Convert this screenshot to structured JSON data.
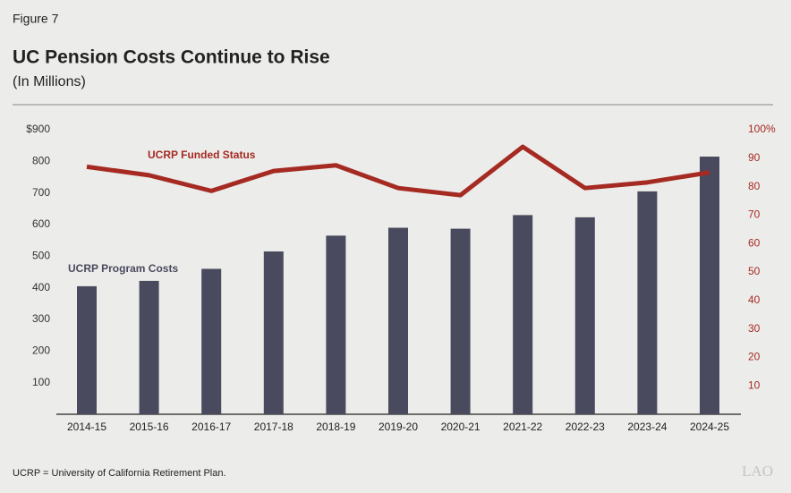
{
  "figure_label": "Figure 7",
  "footnote": "UCRP = University of California Retirement Plan.",
  "logo": "LAO",
  "chart_data": {
    "type": "bar",
    "title": "UC Pension Costs Continue to Rise",
    "subtitle": "(In Millions)",
    "categories": [
      "2014-15",
      "2015-16",
      "2016-17",
      "2017-18",
      "2018-19",
      "2019-20",
      "2020-21",
      "2021-22",
      "2022-23",
      "2023-24",
      "2024-25"
    ],
    "series": [
      {
        "name": "UCRP Program Costs",
        "type": "bar",
        "color": "#4a4a5e",
        "values": [
          405,
          422,
          460,
          515,
          565,
          590,
          587,
          630,
          623,
          705,
          815
        ]
      },
      {
        "name": "UCRP Funded Status",
        "type": "line",
        "axis": "y2",
        "color": "#a52a22",
        "values": [
          87,
          84,
          78.5,
          85.5,
          87.5,
          79.5,
          77,
          94,
          79.5,
          81.5,
          85
        ]
      }
    ],
    "ylim": [
      0,
      900
    ],
    "yticks": [
      100,
      200,
      300,
      400,
      500,
      600,
      700,
      800,
      {
        "value": 900,
        "label": "$900"
      }
    ],
    "y2lim": [
      0,
      100
    ],
    "y2ticks": [
      10,
      20,
      30,
      40,
      50,
      60,
      70,
      80,
      90,
      {
        "value": 100,
        "label": "100%"
      }
    ],
    "grid": false
  }
}
